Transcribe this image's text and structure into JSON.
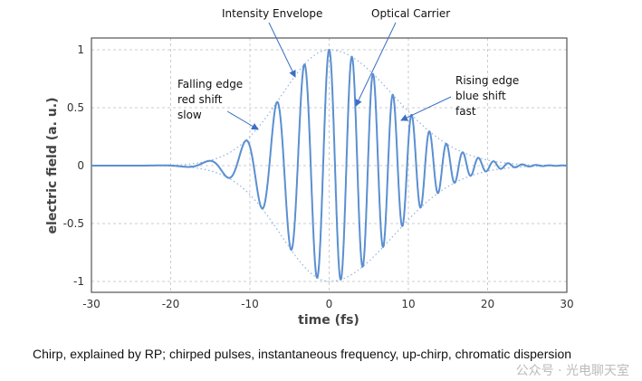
{
  "chart_data": {
    "type": "line",
    "title": "",
    "xlabel": "time (fs)",
    "ylabel": "electric field (a. u.)",
    "xlim": [
      -30,
      30
    ],
    "ylim": [
      -1.1,
      1.1
    ],
    "xticks": [
      -30,
      -20,
      -10,
      0,
      10,
      20,
      30
    ],
    "xtick_labels": [
      "-30",
      "-20",
      "-10",
      "0",
      "10",
      "20",
      "30"
    ],
    "yticks": [
      1,
      0.5,
      0,
      -0.5,
      -1
    ],
    "ytick_labels": [
      "1",
      "0.5",
      "0",
      "-0.5",
      "-1"
    ],
    "grid": true,
    "series": [
      {
        "name": "Optical Carrier",
        "style": "solid",
        "color": "#5b8fd1",
        "model": {
          "envelope_width_fs": 8.5,
          "omega0_rad_per_fs": 2.1,
          "chirp_rad_per_fs2": 0.03
        },
        "key_points": [
          [
            -15,
            0.07
          ],
          [
            -12,
            -0.12
          ],
          [
            -9.8,
            0.22
          ],
          [
            -7.8,
            -0.33
          ],
          [
            -6,
            0.5
          ],
          [
            -4.3,
            -0.65
          ],
          [
            -3,
            0.83
          ],
          [
            -1.5,
            -0.95
          ],
          [
            0,
            1
          ],
          [
            1.5,
            -0.95
          ]
        ]
      },
      {
        "name": "Intensity Envelope",
        "style": "dotted",
        "color": "#8fb3e0"
      }
    ],
    "annotations": [
      {
        "lines": [
          "Intensity Envelope"
        ]
      },
      {
        "lines": [
          "Optical Carrier"
        ]
      },
      {
        "lines": [
          "Falling edge",
          "red shift",
          "slow"
        ]
      },
      {
        "lines": [
          "Rising edge",
          "blue shift",
          "fast"
        ]
      }
    ]
  },
  "caption": "Chirp, explained by RP; chirped pulses, instantaneous frequency, up-chirp, chromatic dispersion",
  "watermark": "公众号 · 光电聊天室"
}
